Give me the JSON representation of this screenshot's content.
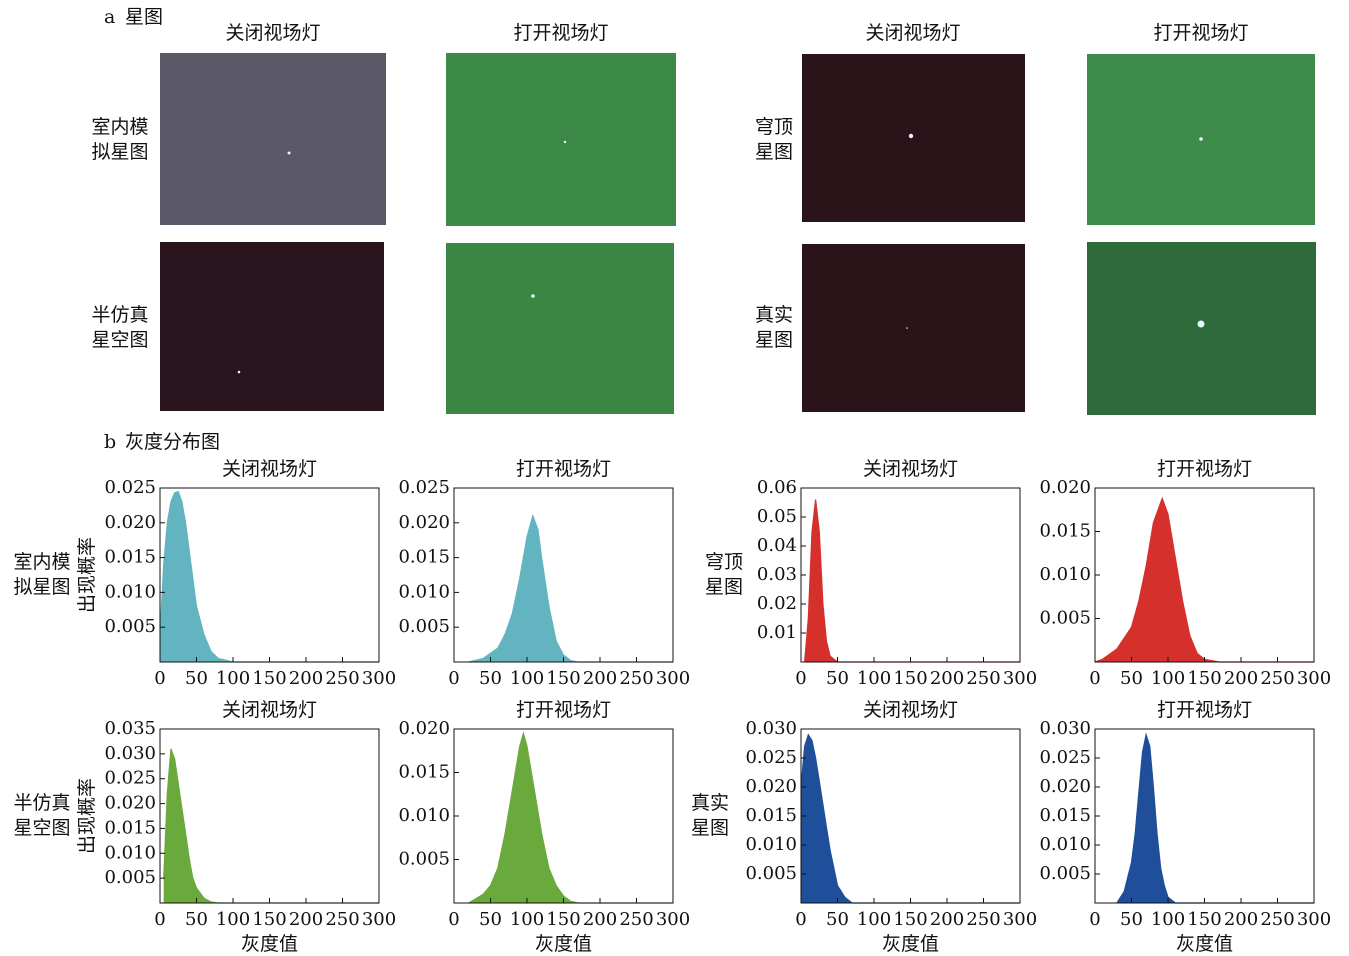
{
  "panel_a": {
    "label": "a",
    "title": "星图",
    "column_titles": [
      "关闭视场灯",
      "打开视场灯",
      "关闭视场灯",
      "打开视场灯"
    ],
    "row_labels": [
      [
        "室内模",
        "拟星图"
      ],
      [
        "穹顶",
        "星图"
      ],
      [
        "半仿真",
        "星空图"
      ],
      [
        "真实",
        "星图"
      ]
    ]
  },
  "panel_b": {
    "label": "b",
    "title": "灰度分布图"
  },
  "chart_data": [
    {
      "type": "area",
      "title": "关闭视场灯",
      "row_label": [
        "室内模",
        "拟星图"
      ],
      "ylabel": "出现概率",
      "color": "#62b4c0",
      "x": [
        0,
        5,
        10,
        15,
        20,
        25,
        30,
        35,
        40,
        45,
        50,
        60,
        70,
        80,
        100,
        300
      ],
      "values": [
        0.004,
        0.014,
        0.02,
        0.023,
        0.0243,
        0.0245,
        0.023,
        0.02,
        0.016,
        0.012,
        0.008,
        0.004,
        0.0015,
        0.0005,
        0,
        0
      ],
      "xlim": [
        0,
        300
      ],
      "ylim": [
        0,
        0.025
      ],
      "xticks": [
        0,
        50,
        100,
        150,
        200,
        250,
        300
      ],
      "yticks": [
        0.005,
        {
          "value": 0.01,
          "label": "0.010"
        },
        0.015,
        {
          "value": 0.02,
          "label": "0.020"
        },
        0.025
      ]
    },
    {
      "type": "area",
      "title": "打开视场灯",
      "color": "#62b4c0",
      "x": [
        20,
        40,
        60,
        70,
        80,
        90,
        100,
        108,
        115,
        120,
        130,
        140,
        150,
        160,
        170,
        300
      ],
      "values": [
        0,
        0.0005,
        0.002,
        0.004,
        0.007,
        0.012,
        0.018,
        0.021,
        0.019,
        0.015,
        0.008,
        0.003,
        0.001,
        0.0002,
        0,
        0
      ],
      "xlim": [
        0,
        300
      ],
      "ylim": [
        0,
        0.025
      ],
      "xticks": [
        0,
        50,
        100,
        150,
        200,
        250,
        300
      ],
      "yticks": [
        0.005,
        {
          "value": 0.01,
          "label": "0.010"
        },
        0.015,
        {
          "value": 0.02,
          "label": "0.020"
        },
        0.025
      ]
    },
    {
      "type": "area",
      "title": "关闭视场灯",
      "row_label": [
        "穹顶",
        "星图"
      ],
      "color": "#d6302c",
      "x": [
        5,
        10,
        15,
        20,
        25,
        30,
        35,
        40,
        50,
        300
      ],
      "values": [
        0,
        0.015,
        0.045,
        0.056,
        0.045,
        0.02,
        0.007,
        0.002,
        0,
        0
      ],
      "xlim": [
        0,
        300
      ],
      "ylim": [
        0,
        0.06
      ],
      "xticks": [
        0,
        50,
        100,
        150,
        200,
        250,
        300
      ],
      "yticks": [
        0.01,
        0.02,
        0.03,
        0.04,
        0.05,
        0.06
      ]
    },
    {
      "type": "area",
      "title": "打开视场灯",
      "color": "#d6302c",
      "x": [
        0,
        10,
        30,
        50,
        60,
        70,
        80,
        92,
        100,
        110,
        120,
        130,
        140,
        150,
        170,
        300
      ],
      "values": [
        0,
        0.0003,
        0.0015,
        0.004,
        0.007,
        0.011,
        0.016,
        0.0188,
        0.017,
        0.012,
        0.007,
        0.003,
        0.001,
        0.0003,
        0,
        0
      ],
      "xlim": [
        0,
        300
      ],
      "ylim": [
        0,
        0.02
      ],
      "xticks": [
        0,
        50,
        100,
        150,
        200,
        250,
        300
      ],
      "yticks": [
        0.005,
        {
          "value": 0.01,
          "label": "0.010"
        },
        0.015,
        {
          "value": 0.02,
          "label": "0.020"
        }
      ]
    },
    {
      "type": "area",
      "title": "关闭视场灯",
      "row_label": [
        "半仿真",
        "星空图"
      ],
      "ylabel": "出现概率",
      "xlabel": "灰度值",
      "color": "#6aaa3c",
      "x": [
        5,
        10,
        15,
        20,
        25,
        30,
        35,
        40,
        45,
        50,
        60,
        70,
        80,
        300
      ],
      "values": [
        0.005,
        0.022,
        0.031,
        0.029,
        0.024,
        0.019,
        0.014,
        0.009,
        0.005,
        0.003,
        0.001,
        0.0002,
        0,
        0
      ],
      "xlim": [
        0,
        300
      ],
      "ylim": [
        0,
        0.035
      ],
      "xticks": [
        0,
        50,
        100,
        150,
        200,
        250,
        300
      ],
      "yticks": [
        0.005,
        {
          "value": 0.01,
          "label": "0.010"
        },
        0.015,
        {
          "value": 0.02,
          "label": "0.020"
        },
        0.025,
        {
          "value": 0.03,
          "label": "0.030"
        },
        0.035
      ]
    },
    {
      "type": "area",
      "title": "打开视场灯",
      "xlabel": "灰度值",
      "color": "#6aaa3c",
      "x": [
        20,
        40,
        50,
        60,
        70,
        80,
        90,
        95,
        100,
        110,
        120,
        130,
        140,
        150,
        160,
        170,
        300
      ],
      "values": [
        0,
        0.001,
        0.002,
        0.004,
        0.008,
        0.013,
        0.018,
        0.0195,
        0.018,
        0.013,
        0.008,
        0.004,
        0.002,
        0.0008,
        0.0002,
        0,
        0
      ],
      "xlim": [
        0,
        300
      ],
      "ylim": [
        0,
        0.02
      ],
      "xticks": [
        0,
        50,
        100,
        150,
        200,
        250,
        300
      ],
      "yticks": [
        0.005,
        {
          "value": 0.01,
          "label": "0.010"
        },
        0.015,
        {
          "value": 0.02,
          "label": "0.020"
        }
      ]
    },
    {
      "type": "area",
      "title": "关闭视场灯",
      "row_label": [
        "真实",
        "星图"
      ],
      "xlabel": "灰度值",
      "color": "#1f4f9a",
      "x": [
        0,
        5,
        10,
        15,
        20,
        25,
        30,
        35,
        40,
        45,
        50,
        60,
        70,
        300
      ],
      "values": [
        0.02,
        0.027,
        0.029,
        0.028,
        0.025,
        0.021,
        0.017,
        0.013,
        0.009,
        0.006,
        0.003,
        0.001,
        0,
        0
      ],
      "xlim": [
        0,
        300
      ],
      "ylim": [
        0,
        0.03
      ],
      "xticks": [
        0,
        50,
        100,
        150,
        200,
        250,
        300
      ],
      "yticks": [
        0.005,
        {
          "value": 0.01,
          "label": "0.010"
        },
        0.015,
        {
          "value": 0.02,
          "label": "0.020"
        },
        0.025,
        {
          "value": 0.03,
          "label": "0.030"
        }
      ]
    },
    {
      "type": "area",
      "title": "打开视场灯",
      "xlabel": "灰度值",
      "color": "#1f4f9a",
      "x": [
        30,
        40,
        50,
        55,
        60,
        65,
        70,
        75,
        80,
        85,
        90,
        95,
        100,
        110,
        300
      ],
      "values": [
        0,
        0.002,
        0.007,
        0.012,
        0.019,
        0.026,
        0.029,
        0.027,
        0.02,
        0.012,
        0.006,
        0.003,
        0.001,
        0,
        0
      ],
      "xlim": [
        0,
        300
      ],
      "ylim": [
        0,
        0.03
      ],
      "xticks": [
        0,
        50,
        100,
        150,
        200,
        250,
        300
      ],
      "yticks": [
        0.005,
        {
          "value": 0.01,
          "label": "0.010"
        },
        0.015,
        {
          "value": 0.02,
          "label": "0.020"
        },
        0.025,
        {
          "value": 0.03,
          "label": "0.030"
        }
      ]
    }
  ]
}
